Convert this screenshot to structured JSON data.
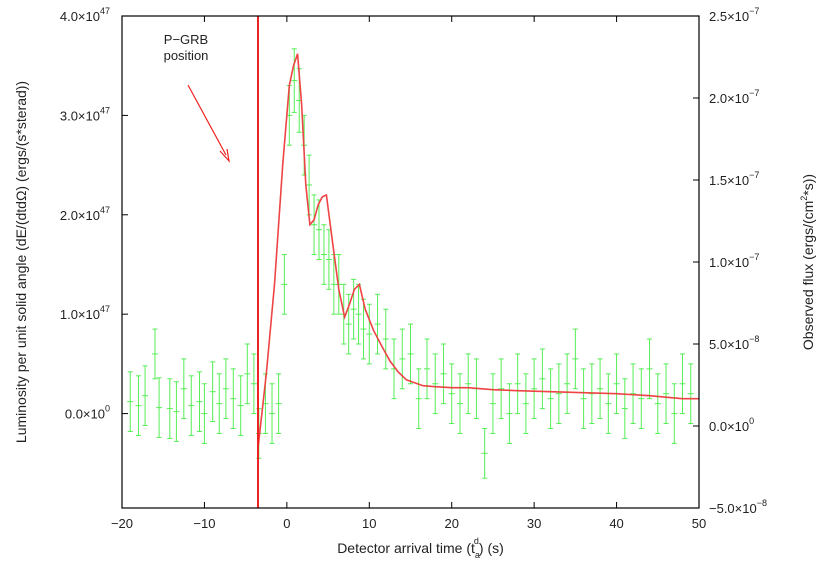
{
  "chart_data": {
    "type": "scatter",
    "title": "",
    "xlabel": "Detector arrival time (t_a^d) (s)",
    "xlabel_main": "Detector arrival time (",
    "xlabel_t": "t",
    "xlabel_sub": "a",
    "xlabel_sup": "d",
    "xlabel_tail": ") (s)",
    "ylabel_left": "Luminosity per unit solid angle (dE/(dtdΩ) (ergs/(s*sterad))",
    "ylabel_right": "Observed flux (ergs/(cm²*s))",
    "ylabel_right_main": "Observed flux (ergs/(cm",
    "ylabel_right_sup": "2",
    "ylabel_right_tail": "*s))",
    "xlim": [
      -20,
      50
    ],
    "ylim_left": [
      -9.5e+46,
      4e+47
    ],
    "ylim_right": [
      -5e-08,
      2.5e-07
    ],
    "grid": false,
    "x_ticks": [
      {
        "value": -20,
        "label": "−20"
      },
      {
        "value": -10,
        "label": "−10"
      },
      {
        "value": 0,
        "label": "0"
      },
      {
        "value": 10,
        "label": "10"
      },
      {
        "value": 20,
        "label": "20"
      },
      {
        "value": 30,
        "label": "30"
      },
      {
        "value": 40,
        "label": "40"
      },
      {
        "value": 50,
        "label": "50"
      }
    ],
    "y_left_ticks": [
      {
        "value": 0,
        "mant": "0.0×10",
        "exp": "0"
      },
      {
        "value": 1e+47,
        "mant": "1.0×10",
        "exp": "47"
      },
      {
        "value": 2e+47,
        "mant": "2.0×10",
        "exp": "47"
      },
      {
        "value": 3e+47,
        "mant": "3.0×10",
        "exp": "47"
      },
      {
        "value": 4e+47,
        "mant": "4.0×10",
        "exp": "47"
      }
    ],
    "y_right_ticks": [
      {
        "value": -5e-08,
        "mant": "−5.0×10",
        "exp": "−8"
      },
      {
        "value": 0,
        "mant": "0.0×10",
        "exp": "0"
      },
      {
        "value": 5e-08,
        "mant": "5.0×10",
        "exp": "−8"
      },
      {
        "value": 1e-07,
        "mant": "1.0×10",
        "exp": "−7"
      },
      {
        "value": 1.5e-07,
        "mant": "1.5×10",
        "exp": "−7"
      },
      {
        "value": 2e-07,
        "mant": "2.0×10",
        "exp": "−7"
      },
      {
        "value": 2.5e-07,
        "mant": "2.5×10",
        "exp": "−7"
      }
    ],
    "annotation": {
      "lines": [
        "P−GRB",
        "position"
      ],
      "vertical_line_x": -3.5,
      "color": "#ee2222"
    },
    "model_curve": {
      "color": "#ee4444",
      "x": [
        -3.5,
        -2.5,
        -1.5,
        -0.5,
        0.3,
        0.8,
        1.3,
        1.8,
        2.3,
        2.8,
        3.3,
        3.8,
        4.3,
        4.8,
        5.5,
        6.3,
        7.0,
        7.6,
        8.2,
        8.8,
        9.5,
        10.5,
        11.5,
        12.5,
        13.5,
        14.5,
        15.5,
        16.5,
        18.0,
        20.0,
        22.0,
        25.0,
        28.0,
        32.0,
        36.0,
        40.0,
        44.0,
        48.0,
        50.0
      ],
      "y": [
        -3.5e+46,
        4e+46,
        1.3e+47,
        2.5e+47,
        3.3e+47,
        3.5e+47,
        3.62e+47,
        3.1e+47,
        2.3e+47,
        1.9e+47,
        1.95e+47,
        2.1e+47,
        2.18e+47,
        2.2e+47,
        1.75e+47,
        1.25e+47,
        9.7e+46,
        1.1e+47,
        1.25e+47,
        1.3e+47,
        1.05e+47,
        8.4e+46,
        6.8e+46,
        5.3e+46,
        4.2e+46,
        3.4e+46,
        3.1e+46,
        2.8e+46,
        2.7e+46,
        2.6e+46,
        2.6e+46,
        2.4e+46,
        2.3e+46,
        2.2e+46,
        2.1e+46,
        2e+46,
        1.8e+46,
        1.5e+46,
        1.5e+46
      ]
    },
    "series": [
      {
        "color": "#55ee55",
        "x": [
          -19.0,
          -18.0,
          -17.2,
          -16.0,
          -15.5,
          -14.2,
          -13.4,
          -12.5,
          -11.6,
          -10.6,
          -10.0,
          -9.0,
          -8.2,
          -7.4,
          -6.5,
          -5.6,
          -4.8,
          -4.0,
          -3.4,
          -2.6,
          -1.8,
          -1.0,
          -0.3,
          0.3,
          0.9,
          1.5,
          2.1,
          2.7,
          3.3,
          3.9,
          4.5,
          5.1,
          5.7,
          6.3,
          6.9,
          7.5,
          8.1,
          8.7,
          9.3,
          10.0,
          11.0,
          12.0,
          13.0,
          14.0,
          15.0,
          16.0,
          17.0,
          18.0,
          19.0,
          20.0,
          21.0,
          22.0,
          23.0,
          24.0,
          25.0,
          26.0,
          27.0,
          28.0,
          29.0,
          30.0,
          31.0,
          32.0,
          33.0,
          34.0,
          35.0,
          36.0,
          37.0,
          38.0,
          39.0,
          40.0,
          41.0,
          42.0,
          43.0,
          44.0,
          45.0,
          46.0,
          47.0,
          48.0,
          49.0
        ],
        "y": [
          1.2e+46,
          8e+45,
          1.8e+46,
          6e+46,
          6e+45,
          5e+45,
          2e+45,
          2.5e+46,
          8e+45,
          1.2e+46,
          0.0,
          2.2e+46,
          1e+46,
          2.5e+46,
          1.5e+46,
          8e+45,
          4e+46,
          3e+46,
          -2e+46,
          1e+46,
          0.0,
          1e+46,
          1.3e+47,
          3e+47,
          3.35e+47,
          3.15e+47,
          2.7e+47,
          2.3e+47,
          1.9e+47,
          1.85e+47,
          1.6e+47,
          1.55e+47,
          1.3e+47,
          1.3e+47,
          1e+47,
          9e+46,
          1.05e+47,
          1e+47,
          8.5e+46,
          8e+46,
          9e+46,
          7.5e+46,
          4.5e+46,
          5.5e+46,
          6e+46,
          1.5e+46,
          4.5e+46,
          3e+46,
          4e+46,
          2e+46,
          1e+46,
          3e+46,
          2.5e+46,
          -4e+46,
          1e+46,
          2.5e+46,
          0.0,
          3e+46,
          1e+46,
          2.5e+46,
          3.5e+46,
          1.5e+46,
          2e+46,
          3e+46,
          5.5e+46,
          1.5e+46,
          2e+46,
          2.5e+46,
          1e+46,
          3e+46,
          5e+45,
          2e+46,
          1.5e+46,
          4.5e+46,
          1e+46,
          2e+46,
          0.0,
          3e+46,
          2e+46
        ],
        "err": [
          3e+46,
          3e+46,
          3e+46,
          2.5e+46,
          3e+46,
          3e+46,
          3e+46,
          3e+46,
          3e+46,
          3e+46,
          3e+46,
          3e+46,
          3e+46,
          3e+46,
          3e+46,
          3e+46,
          3e+46,
          3e+46,
          2.5e+46,
          3e+46,
          3e+46,
          3e+46,
          3e+46,
          3e+46,
          3.2e+46,
          3.2e+46,
          3e+46,
          3e+46,
          3e+46,
          3e+46,
          3e+46,
          3e+46,
          3e+46,
          3e+46,
          3e+46,
          3e+46,
          3e+46,
          3e+46,
          3e+46,
          3e+46,
          3e+46,
          3e+46,
          3e+46,
          3e+46,
          3e+46,
          3e+46,
          3e+46,
          3e+46,
          3e+46,
          3e+46,
          3e+46,
          3e+46,
          3e+46,
          2.5e+46,
          3e+46,
          3e+46,
          3e+46,
          3e+46,
          3e+46,
          3e+46,
          3e+46,
          3e+46,
          3e+46,
          3e+46,
          3e+46,
          3e+46,
          3e+46,
          3e+46,
          3e+46,
          3e+46,
          3e+46,
          3e+46,
          3e+46,
          3e+46,
          3e+46,
          3e+46,
          3e+46,
          3e+46,
          3e+46
        ]
      }
    ]
  }
}
